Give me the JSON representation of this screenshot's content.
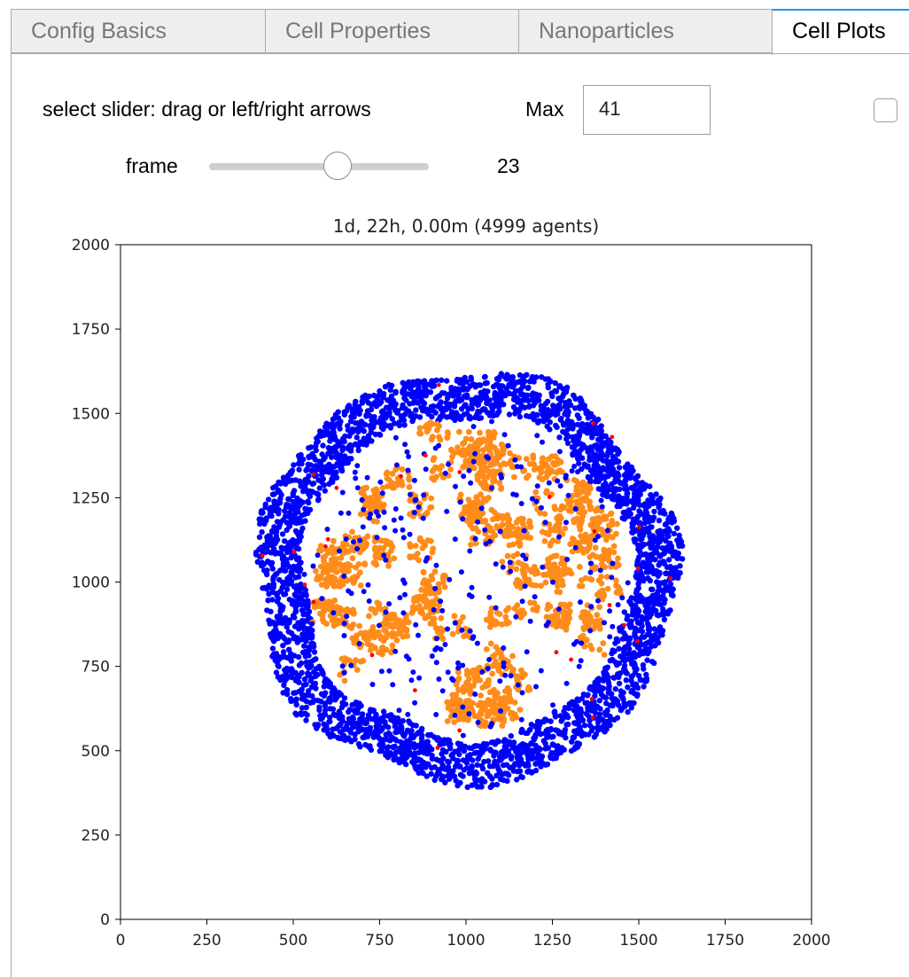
{
  "tabs": [
    {
      "label": "Config Basics"
    },
    {
      "label": "Cell Properties"
    },
    {
      "label": "Nanoparticles"
    },
    {
      "label": "Cell Plots"
    }
  ],
  "controls": {
    "hint": "select slider: drag or left/right arrows",
    "max_label": "Max",
    "max_value": "41",
    "frame_label": "frame",
    "frame_value": "23",
    "slider_min": 0,
    "slider_max": 41,
    "slider_value": 23,
    "checkbox_checked": false
  },
  "colors": {
    "tab_active_accent": "#2196f3",
    "cell_outer": "#0000ff",
    "cell_inner": "#ff8c1a",
    "cell_dead": "#ff0000"
  },
  "chart_data": {
    "type": "scatter",
    "title": "1d, 22h, 0.00m (4999 agents)",
    "xlim": [
      0,
      2000
    ],
    "ylim": [
      0,
      2000
    ],
    "xticks": [
      0,
      250,
      500,
      750,
      1000,
      1250,
      1500,
      1750,
      2000
    ],
    "yticks": [
      0,
      250,
      500,
      750,
      1000,
      1250,
      1500,
      1750,
      2000
    ],
    "xlabel": "",
    "ylabel": "",
    "center": [
      1000,
      1015
    ],
    "series": [
      {
        "color": "#0000ff",
        "r_min": 480,
        "r_max": 610,
        "approx_count": 3200
      },
      {
        "color": "#ff8c1a",
        "r_min": 0,
        "r_max": 470,
        "approx_count": 1700
      },
      {
        "color": "#ff0000",
        "r_min": 300,
        "r_max": 600,
        "approx_count": 30
      }
    ]
  }
}
